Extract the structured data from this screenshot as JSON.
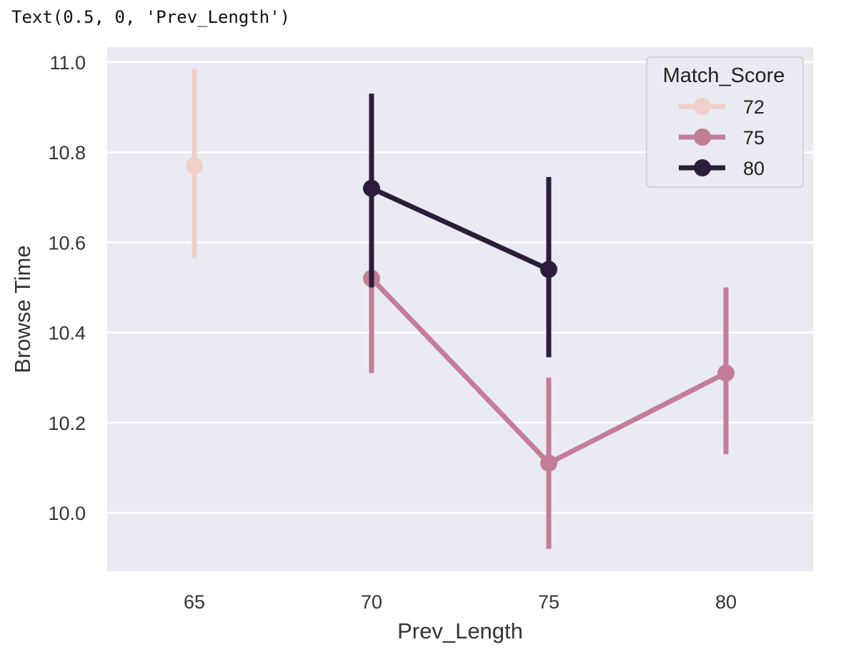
{
  "output_text": "Text(0.5, 0, 'Prev_Length')",
  "chart_data": {
    "type": "line",
    "xlabel": "Prev_Length",
    "ylabel": "Browse Time",
    "categories": [
      "65",
      "70",
      "75",
      "80"
    ],
    "yticks": [
      "10.0",
      "10.2",
      "10.4",
      "10.6",
      "10.8",
      "11.0"
    ],
    "ylim": [
      9.87,
      11.03
    ],
    "grid": true,
    "legend": {
      "title": "Match_Score",
      "placement": "top-right"
    },
    "series": [
      {
        "name": "72",
        "color": "#f0d0c8",
        "points": [
          {
            "category": "65",
            "value": 10.77,
            "err_low": 10.565,
            "err_high": 10.985
          }
        ]
      },
      {
        "name": "75",
        "color": "#c47d98",
        "points": [
          {
            "category": "70",
            "value": 10.52,
            "err_low": 10.31,
            "err_high": 10.7
          },
          {
            "category": "75",
            "value": 10.11,
            "err_low": 9.92,
            "err_high": 10.3
          },
          {
            "category": "80",
            "value": 10.31,
            "err_low": 10.13,
            "err_high": 10.5
          }
        ]
      },
      {
        "name": "80",
        "color": "#2d1c3c",
        "points": [
          {
            "category": "70",
            "value": 10.72,
            "err_low": 10.5,
            "err_high": 10.93
          },
          {
            "category": "75",
            "value": 10.54,
            "err_low": 10.345,
            "err_high": 10.745
          }
        ]
      }
    ]
  }
}
